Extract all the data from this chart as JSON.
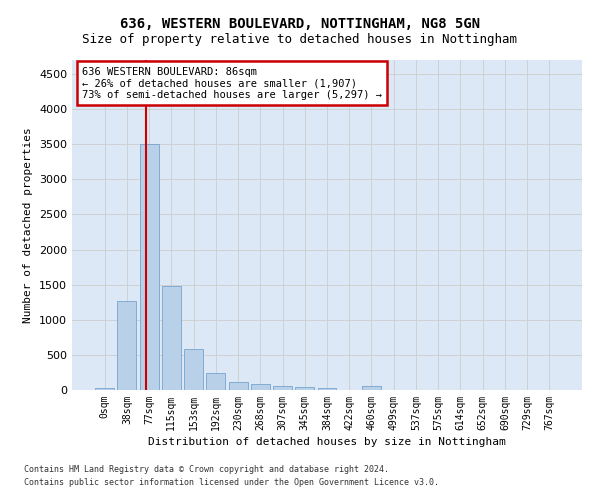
{
  "title": "636, WESTERN BOULEVARD, NOTTINGHAM, NG8 5GN",
  "subtitle": "Size of property relative to detached houses in Nottingham",
  "xlabel": "Distribution of detached houses by size in Nottingham",
  "ylabel": "Number of detached properties",
  "footer1": "Contains HM Land Registry data © Crown copyright and database right 2024.",
  "footer2": "Contains public sector information licensed under the Open Government Licence v3.0.",
  "bar_labels": [
    "0sqm",
    "38sqm",
    "77sqm",
    "115sqm",
    "153sqm",
    "192sqm",
    "230sqm",
    "268sqm",
    "307sqm",
    "345sqm",
    "384sqm",
    "422sqm",
    "460sqm",
    "499sqm",
    "537sqm",
    "575sqm",
    "614sqm",
    "652sqm",
    "690sqm",
    "729sqm",
    "767sqm"
  ],
  "bar_values": [
    30,
    1270,
    3500,
    1480,
    580,
    240,
    110,
    80,
    55,
    40,
    30,
    5,
    50,
    5,
    0,
    0,
    0,
    0,
    0,
    0,
    0
  ],
  "bar_color": "#b8d0e8",
  "bar_edge_color": "#6699cc",
  "red_line_x": 1.87,
  "annotation_text": "636 WESTERN BOULEVARD: 86sqm\n← 26% of detached houses are smaller (1,907)\n73% of semi-detached houses are larger (5,297) →",
  "annotation_box_color": "#ffffff",
  "annotation_box_edge": "#cc0000",
  "red_line_color": "#cc0000",
  "ylim": [
    0,
    4700
  ],
  "yticks": [
    0,
    500,
    1000,
    1500,
    2000,
    2500,
    3000,
    3500,
    4000,
    4500
  ],
  "grid_color": "#cccccc",
  "bg_color": "#dce8f5",
  "title_fontsize": 10,
  "subtitle_fontsize": 9,
  "tick_fontsize": 7,
  "ylabel_fontsize": 8,
  "xlabel_fontsize": 8,
  "annotation_fontsize": 7.5
}
